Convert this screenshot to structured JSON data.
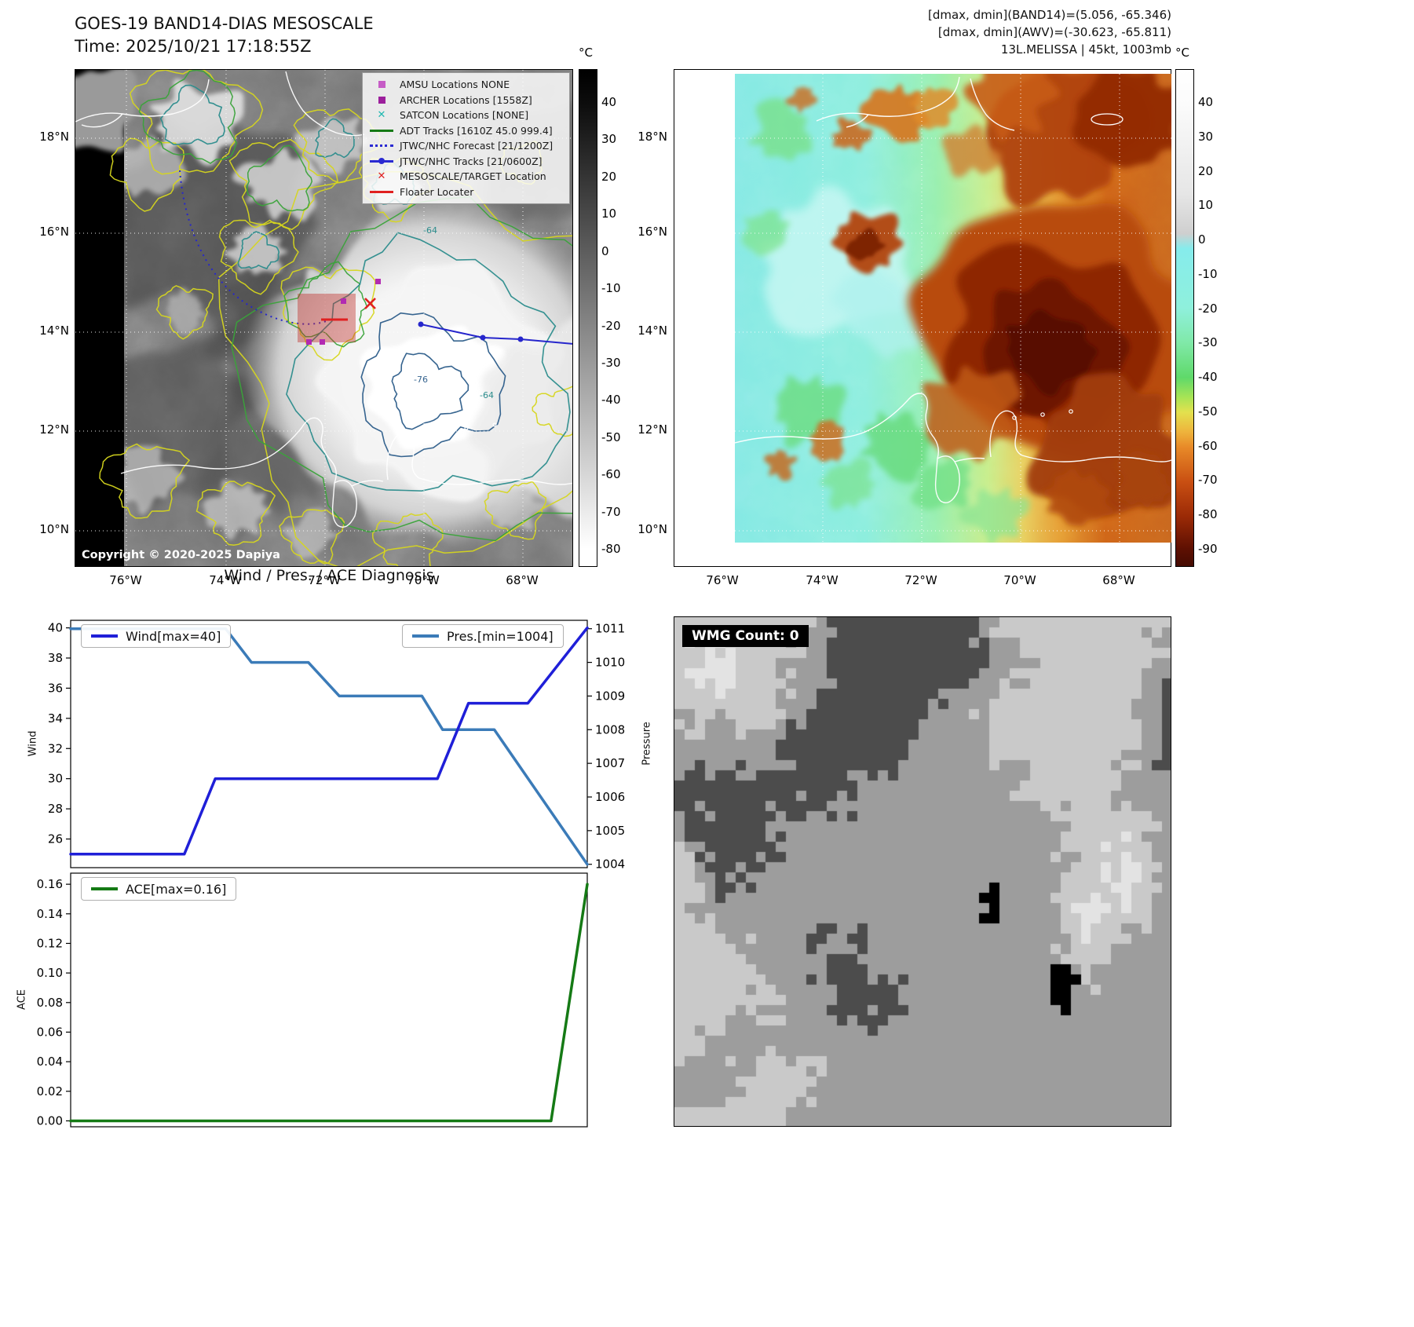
{
  "band14": {
    "title": "GOES-19 BAND14-DIAS MESOSCALE",
    "subtitle": "Time: 2025/10/21 17:18:55Z",
    "copyright": "Copyright © 2020-2025 Dapiya",
    "unit": "°C",
    "colorbar_ticks": [
      40,
      30,
      20,
      10,
      0,
      -10,
      -20,
      -30,
      -40,
      -50,
      -60,
      -70,
      -80
    ],
    "lat_labels": [
      "18°N",
      "16°N",
      "14°N",
      "12°N",
      "10°N"
    ],
    "lon_labels": [
      "76°W",
      "74°W",
      "72°W",
      "70°W",
      "68°W"
    ],
    "contour_labels": [
      "-64",
      "-76",
      "-64"
    ],
    "legend": [
      {
        "label": "AMSU Locations NONE",
        "marker": "square",
        "color": "#c65cc6"
      },
      {
        "label": "ARCHER Locations [1558Z]",
        "marker": "square",
        "color": "#9c1f9c"
      },
      {
        "label": "SATCON Locations [NONE]",
        "marker": "cross",
        "color": "#1fb8b0"
      },
      {
        "label": "ADT Tracks [1610Z 45.0 999.4]",
        "marker": "line",
        "color": "#157a15"
      },
      {
        "label": "JTWC/NHC Forecast [21/1200Z]",
        "marker": "dotted-line",
        "color": "#2a2ad2"
      },
      {
        "label": "JTWC/NHC Tracks [21/0600Z]",
        "marker": "line-dot",
        "color": "#2a2ad2"
      },
      {
        "label": "MESOSCALE/TARGET Location",
        "marker": "x",
        "color": "#e02020"
      },
      {
        "label": "Floater Locater",
        "marker": "line",
        "color": "#e02020"
      }
    ]
  },
  "awv": {
    "annotations": [
      "[dmax, dmin](BAND14)=(5.056, -65.346)",
      "[dmax, dmin](AWV)=(-30.623, -65.811)",
      "13L.MELISSA | 45kt, 1003mb"
    ],
    "unit": "°C",
    "colorbar_ticks": [
      40,
      30,
      20,
      10,
      0,
      -10,
      -20,
      -30,
      -40,
      -50,
      -60,
      -70,
      -80,
      -90
    ],
    "lat_labels": [
      "18°N",
      "16°N",
      "14°N",
      "12°N",
      "10°N"
    ],
    "lon_labels": [
      "76°W",
      "74°W",
      "72°W",
      "70°W",
      "68°W"
    ]
  },
  "wmg": {
    "label": "WMG Count: 0"
  },
  "chart_data": [
    {
      "type": "line",
      "title": "Wind / Pres. / ACE Diagnosis",
      "x_range": [
        0,
        1
      ],
      "grid": false,
      "legend_position": "upper left / upper right",
      "series": [
        {
          "name": "Wind[max=40]",
          "axis": "left",
          "color": "#1f1fd8",
          "x": [
            0,
            0.22,
            0.28,
            0.71,
            0.77,
            0.885,
            1.0
          ],
          "values": [
            25,
            25,
            30,
            30,
            35,
            35,
            40
          ]
        },
        {
          "name": "Pres.[min=1004]",
          "axis": "right",
          "color": "#3b7bb8",
          "x": [
            0,
            0.3,
            0.35,
            0.46,
            0.52,
            0.68,
            0.72,
            0.82,
            1.0
          ],
          "values": [
            1011,
            1011,
            1010,
            1010,
            1009,
            1009,
            1008,
            1008,
            1004
          ]
        }
      ],
      "ylabel_left": "Wind",
      "yticks_left": [
        26,
        28,
        30,
        32,
        34,
        36,
        38,
        40
      ],
      "ylim_left": [
        24.1,
        40.5
      ],
      "ylabel_right": "Pressure",
      "yticks_right": [
        1004,
        1005,
        1006,
        1007,
        1008,
        1009,
        1010,
        1011
      ],
      "ylim_right": [
        1003.9,
        1011.25
      ]
    },
    {
      "type": "line",
      "series": [
        {
          "name": "ACE[max=0.16]",
          "color": "#157a15",
          "x": [
            0,
            0.93,
            1.0
          ],
          "values": [
            0,
            0,
            0.16
          ]
        }
      ],
      "ylabel": "ACE",
      "yticks": [
        0.0,
        0.02,
        0.04,
        0.06,
        0.08,
        0.1,
        0.12,
        0.14,
        0.16
      ],
      "ylim": [
        -0.004,
        0.1675
      ]
    }
  ]
}
